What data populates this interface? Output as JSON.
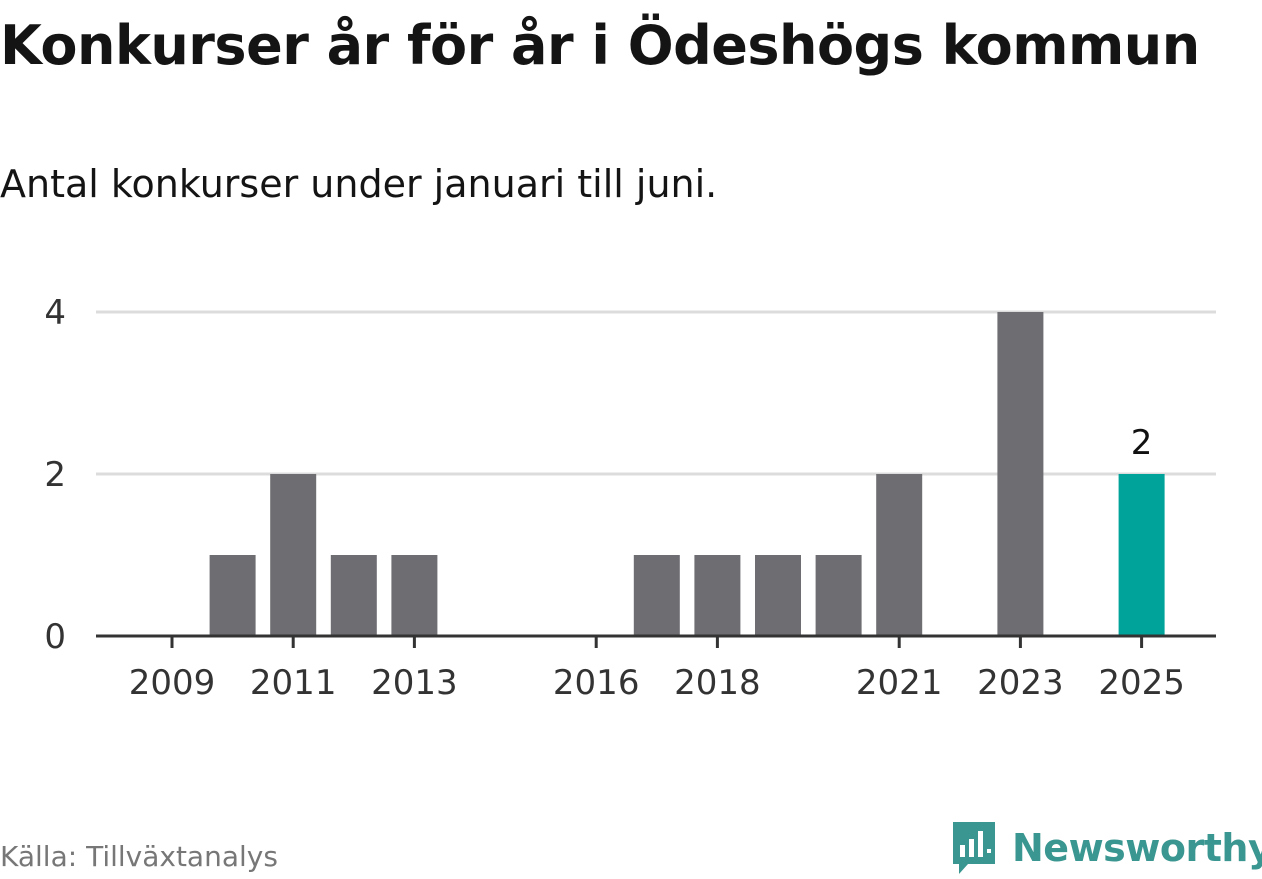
{
  "title": "Konkurser år för år i Ödeshögs kommun",
  "subtitle": "Antal konkurser under januari till juni.",
  "source": "Källa: Tillväxtanalys",
  "brand": {
    "name": "Newsworthy",
    "icon": "newsworthy-bar-chart-logo-icon",
    "color": "#3a9690"
  },
  "chart_data": {
    "type": "bar",
    "categories": [
      "2009",
      "2010",
      "2011",
      "2012",
      "2013",
      "2014",
      "2015",
      "2016",
      "2017",
      "2018",
      "2019",
      "2020",
      "2021",
      "2022",
      "2023",
      "2024",
      "2025"
    ],
    "values": [
      0,
      1,
      2,
      1,
      1,
      0,
      0,
      0,
      1,
      1,
      1,
      1,
      2,
      0,
      4,
      0,
      2
    ],
    "x_tick_labels": [
      "2009",
      "2011",
      "2013",
      "2016",
      "2018",
      "2021",
      "2023",
      "2025"
    ],
    "y_ticks": [
      "0",
      "2",
      "4"
    ],
    "ylim": [
      0,
      4
    ],
    "grid": true,
    "data_labels": [
      {
        "category": "2025",
        "text": "2"
      }
    ],
    "highlight_category": "2025",
    "colors": {
      "bar": "#6e6d72",
      "highlight": "#00a39a",
      "grid": "#dcdcdc",
      "axis": "#333333"
    },
    "xlabel": "",
    "ylabel": ""
  }
}
